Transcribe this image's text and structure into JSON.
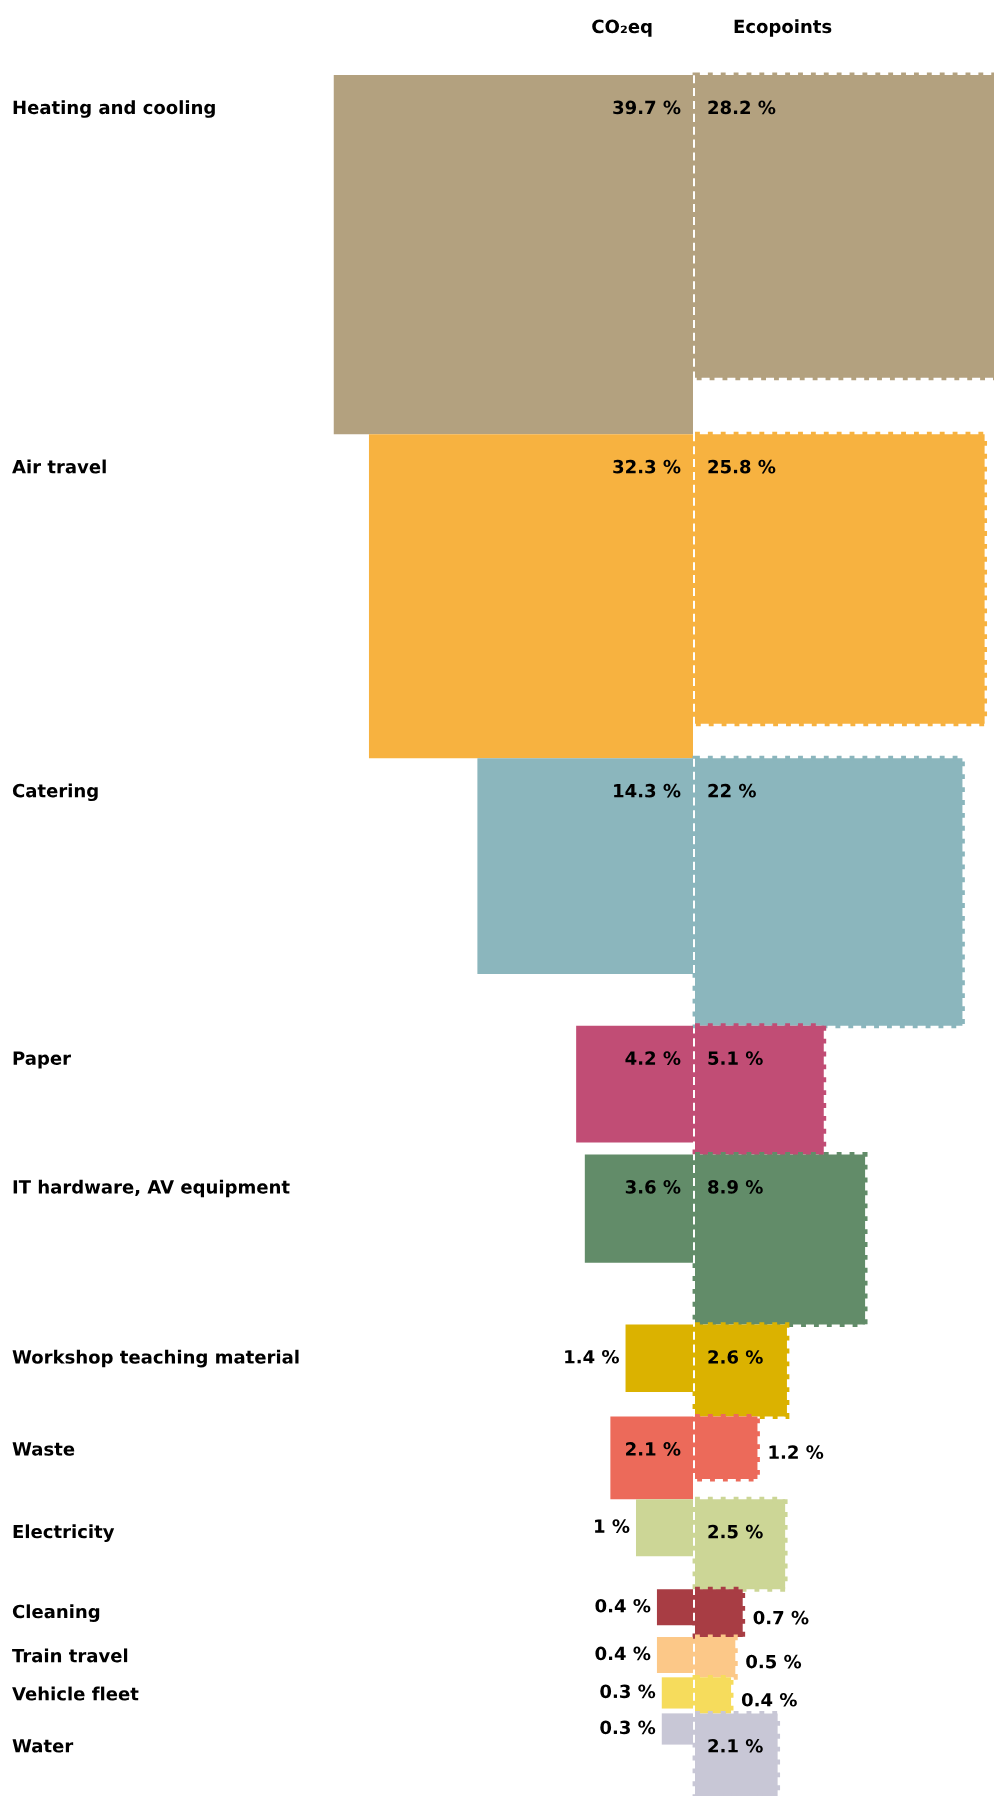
{
  "chart_data": {
    "type": "other",
    "categories": [
      "Heating and cooling",
      "Air travel",
      "Catering",
      "Paper",
      "IT hardware, AV equipment",
      "Workshop teaching material",
      "Waste",
      "Electricity",
      "Cleaning",
      "Train travel",
      "Vehicle fleet",
      "Water"
    ],
    "series": [
      {
        "name": "CO₂eq",
        "line_style": "solid",
        "colors": [
          "#b3a17f",
          "#f7b240",
          "#8bb6bd",
          "#c14d75",
          "#628c69",
          "#dbb200",
          "#ec6a5a",
          "#ccd696",
          "#a83d44",
          "#fcc888",
          "#f6dc5c",
          "#c8c7d6"
        ],
        "values": [
          39.7,
          32.3,
          14.3,
          4.2,
          3.6,
          1.4,
          2.1,
          1,
          0.4,
          0.4,
          0.3,
          0.3
        ],
        "value_labels": [
          "39.7 %",
          "32.3 %",
          "14.3 %",
          "4.2 %",
          "3.6 %",
          "1.4 %",
          "2.1 %",
          "1 %",
          "0.4 %",
          "0.4 %",
          "0.3 %",
          "0.3 %"
        ]
      },
      {
        "name": "Ecopoints",
        "line_style": "dotted",
        "colors": [
          "#b3a17f",
          "#f7b240",
          "#8bb6bd",
          "#c14d75",
          "#628c69",
          "#dbb200",
          "#ec6a5a",
          "#ccd696",
          "#a83d44",
          "#fcc888",
          "#f6dc5c",
          "#c8c7d6"
        ],
        "values": [
          28.2,
          25.8,
          22,
          5.1,
          8.9,
          2.6,
          1.2,
          2.5,
          0.7,
          0.5,
          0.4,
          2.1
        ],
        "value_labels": [
          "28.2 %",
          "25.8 %",
          "22 %",
          "5.1 %",
          "8.9 %",
          "2.6 %",
          "1.2 %",
          "2.5 %",
          "0.7 %",
          "0.5 %",
          "0.4 %",
          "2.1 %"
        ]
      }
    ]
  }
}
